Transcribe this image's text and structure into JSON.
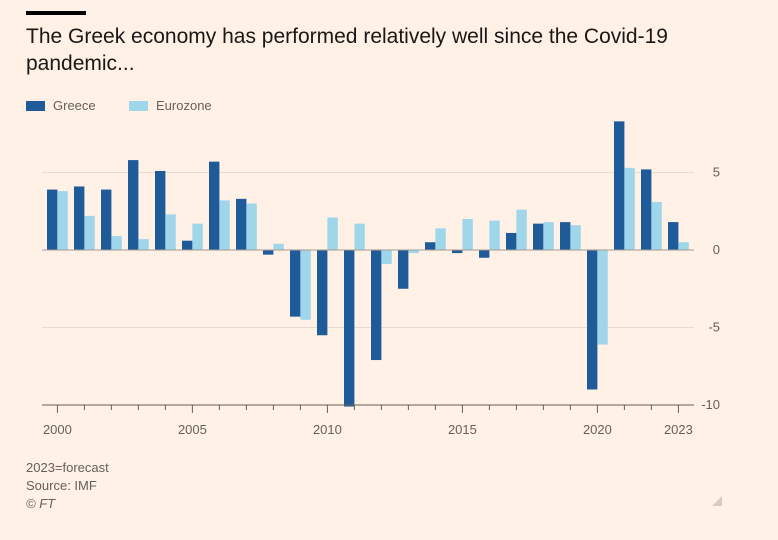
{
  "title": "The Greek economy has performed relatively well since the Covid-19 pandemic...",
  "legend": [
    {
      "name": "Greece",
      "color": "#1f5b99"
    },
    {
      "name": "Eurozone",
      "color": "#9fd6ea"
    }
  ],
  "chart_data": {
    "type": "bar",
    "title": "The Greek economy has performed relatively well since the Covid-19 pandemic...",
    "xlabel": "",
    "ylabel": "",
    "ylim": [
      -10,
      8.5
    ],
    "yticks": [
      5,
      0,
      -5,
      -10
    ],
    "ytick_labels": [
      "5",
      "0",
      "-5",
      "-10"
    ],
    "xtick_labels": [
      "2000",
      "2005",
      "2010",
      "2015",
      "2020",
      "2023"
    ],
    "categories": [
      "2000",
      "2001",
      "2002",
      "2003",
      "2004",
      "2005",
      "2006",
      "2007",
      "2008",
      "2009",
      "2010",
      "2011",
      "2012",
      "2013",
      "2014",
      "2015",
      "2016",
      "2017",
      "2018",
      "2019",
      "2020",
      "2021",
      "2022",
      "2023"
    ],
    "series": [
      {
        "name": "Greece",
        "color": "#1f5b99",
        "values": [
          3.9,
          4.1,
          3.9,
          5.8,
          5.1,
          0.6,
          5.7,
          3.3,
          -0.3,
          -4.3,
          -5.5,
          -10.1,
          -7.1,
          -2.5,
          0.5,
          -0.2,
          -0.5,
          1.1,
          1.7,
          1.8,
          -9.0,
          8.3,
          5.2,
          1.8
        ]
      },
      {
        "name": "Eurozone",
        "color": "#9fd6ea",
        "values": [
          3.8,
          2.2,
          0.9,
          0.7,
          2.3,
          1.7,
          3.2,
          3.0,
          0.4,
          -4.5,
          2.1,
          1.7,
          -0.9,
          -0.2,
          1.4,
          2.0,
          1.9,
          2.6,
          1.8,
          1.6,
          -6.1,
          5.3,
          3.1,
          0.5
        ]
      }
    ]
  },
  "footer": {
    "note": "2023=forecast",
    "source": "Source: IMF",
    "copyright": "© FT"
  }
}
